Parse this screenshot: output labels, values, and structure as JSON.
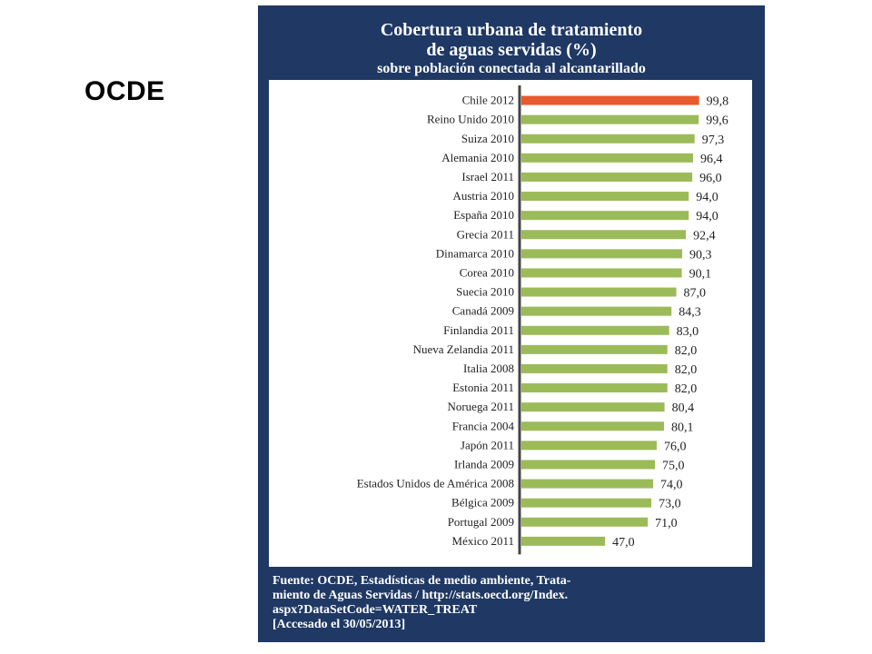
{
  "slide_title": "OCDE",
  "chart_data": {
    "type": "bar",
    "orientation": "horizontal",
    "title": "Cobertura urbana de tratamiento de aguas servidas (%)",
    "title_lines": [
      "Cobertura urbana de tratamiento",
      "de aguas servidas (%)"
    ],
    "subtitle": "sobre población conectada al alcantarillado",
    "categories": [
      "Chile 2012",
      "Reino Unido 2010",
      "Suiza 2010",
      "Alemania 2010",
      "Israel 2011",
      "Austria 2010",
      "España 2010",
      "Grecia 2011",
      "Dinamarca 2010",
      "Corea 2010",
      "Suecia 2010",
      "Canadá 2009",
      "Finlandia 2011",
      "Nueva Zelandia 2011",
      "Italia 2008",
      "Estonia 2011",
      "Noruega 2011",
      "Francia 2004",
      "Japón 2011",
      "Irlanda 2009",
      "Estados Unidos de América 2008",
      "Bélgica 2009",
      "Portugal 2009",
      "México 2011"
    ],
    "values": [
      99.8,
      99.6,
      97.3,
      96.4,
      96.0,
      94.0,
      94.0,
      92.4,
      90.3,
      90.1,
      87.0,
      84.3,
      83.0,
      82.0,
      82.0,
      82.0,
      80.4,
      80.1,
      76.0,
      75.0,
      74.0,
      73.0,
      71.0,
      47.0
    ],
    "value_labels": [
      "99,8",
      "99,6",
      "97,3",
      "96,4",
      "96,0",
      "94,0",
      "94,0",
      "92,4",
      "90,3",
      "90,1",
      "87,0",
      "84,3",
      "83,0",
      "82,0",
      "82,0",
      "82,0",
      "80,4",
      "80,1",
      "76,0",
      "75,0",
      "74,0",
      "73,0",
      "71,0",
      "47,0"
    ],
    "highlight_index": 0,
    "xlim": [
      0,
      100
    ],
    "grid": false,
    "colors": {
      "bar": "#9bbb59",
      "highlight": "#e8592e",
      "axis": "#444444",
      "panel": "#1f3864"
    }
  },
  "footer": {
    "lines": [
      "Fuente: OCDE, Estadísticas de medio ambiente, Trata-",
      "miento de Aguas Servidas / http://stats.oecd.org/Index.",
      "aspx?DataSetCode=WATER_TREAT",
      "[Accesado el 30/05/2013]"
    ]
  }
}
